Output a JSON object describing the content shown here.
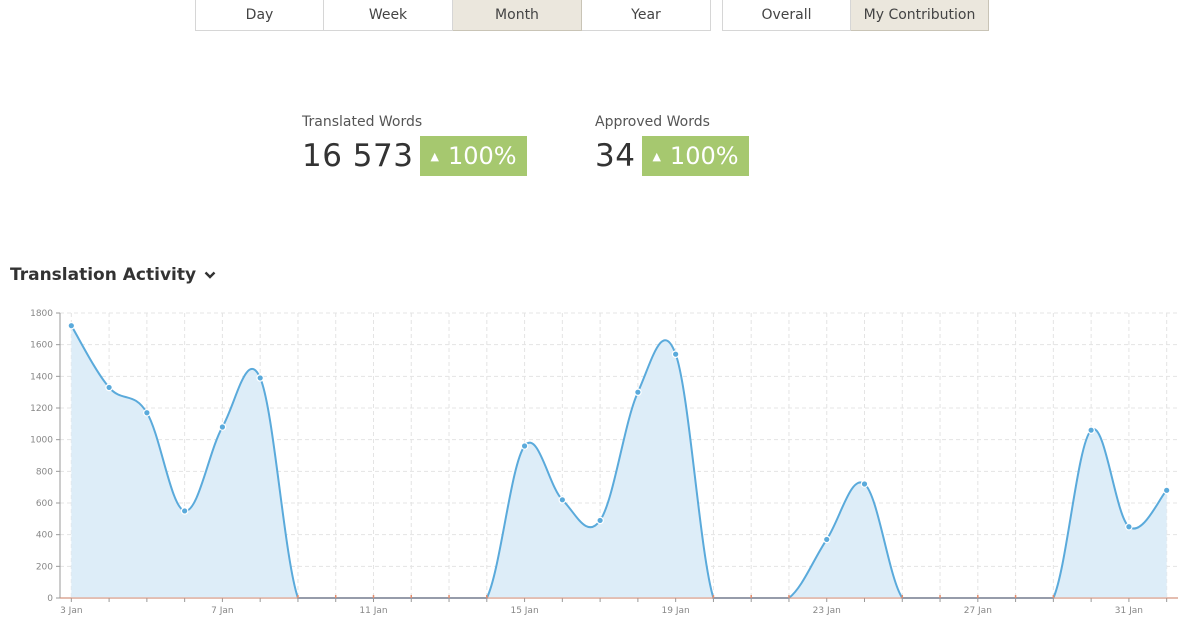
{
  "period_tabs": [
    {
      "label": "Day",
      "active": false
    },
    {
      "label": "Week",
      "active": false
    },
    {
      "label": "Month",
      "active": true
    },
    {
      "label": "Year",
      "active": false
    }
  ],
  "scope_tabs": [
    {
      "label": "Overall",
      "active": false
    },
    {
      "label": "My Contribution",
      "active": true
    }
  ],
  "stats": {
    "translated": {
      "label": "Translated Words",
      "value": "16 573",
      "change": "100%"
    },
    "approved": {
      "label": "Approved Words",
      "value": "34",
      "change": "100%"
    }
  },
  "activity": {
    "title": "Translation Activity",
    "toggle_icon": "chevron-down-icon"
  },
  "colors": {
    "accent_badge": "#a6c86f",
    "line": "#5aaadb",
    "area": "#ddedf8",
    "active_tab": "#ebe7dd"
  },
  "chart_data": {
    "type": "area",
    "x_tick_labels": [
      "3 Jan",
      "7 Jan",
      "11 Jan",
      "15 Jan",
      "19 Jan",
      "23 Jan",
      "27 Jan",
      "31 Jan"
    ],
    "x_tick_days": [
      3,
      7,
      11,
      15,
      19,
      23,
      27,
      31
    ],
    "y_tick_labels": [
      "0",
      "200",
      "400",
      "600",
      "800",
      "1000",
      "1200",
      "1400",
      "1600",
      "1800"
    ],
    "ylim": [
      0,
      1800
    ],
    "xlim": [
      2.7,
      32.3
    ],
    "grid": true,
    "days": [
      3,
      4,
      5,
      6,
      7,
      8,
      9,
      10,
      11,
      12,
      13,
      14,
      15,
      16,
      17,
      18,
      19,
      20,
      21,
      22,
      23,
      24,
      25,
      26,
      27,
      28,
      29,
      30,
      31,
      32
    ],
    "values": [
      1720,
      1330,
      1170,
      550,
      1080,
      1390,
      0,
      0,
      0,
      0,
      0,
      0,
      960,
      620,
      490,
      1300,
      1540,
      0,
      0,
      0,
      370,
      720,
      0,
      0,
      0,
      0,
      0,
      1060,
      450,
      680
    ]
  }
}
